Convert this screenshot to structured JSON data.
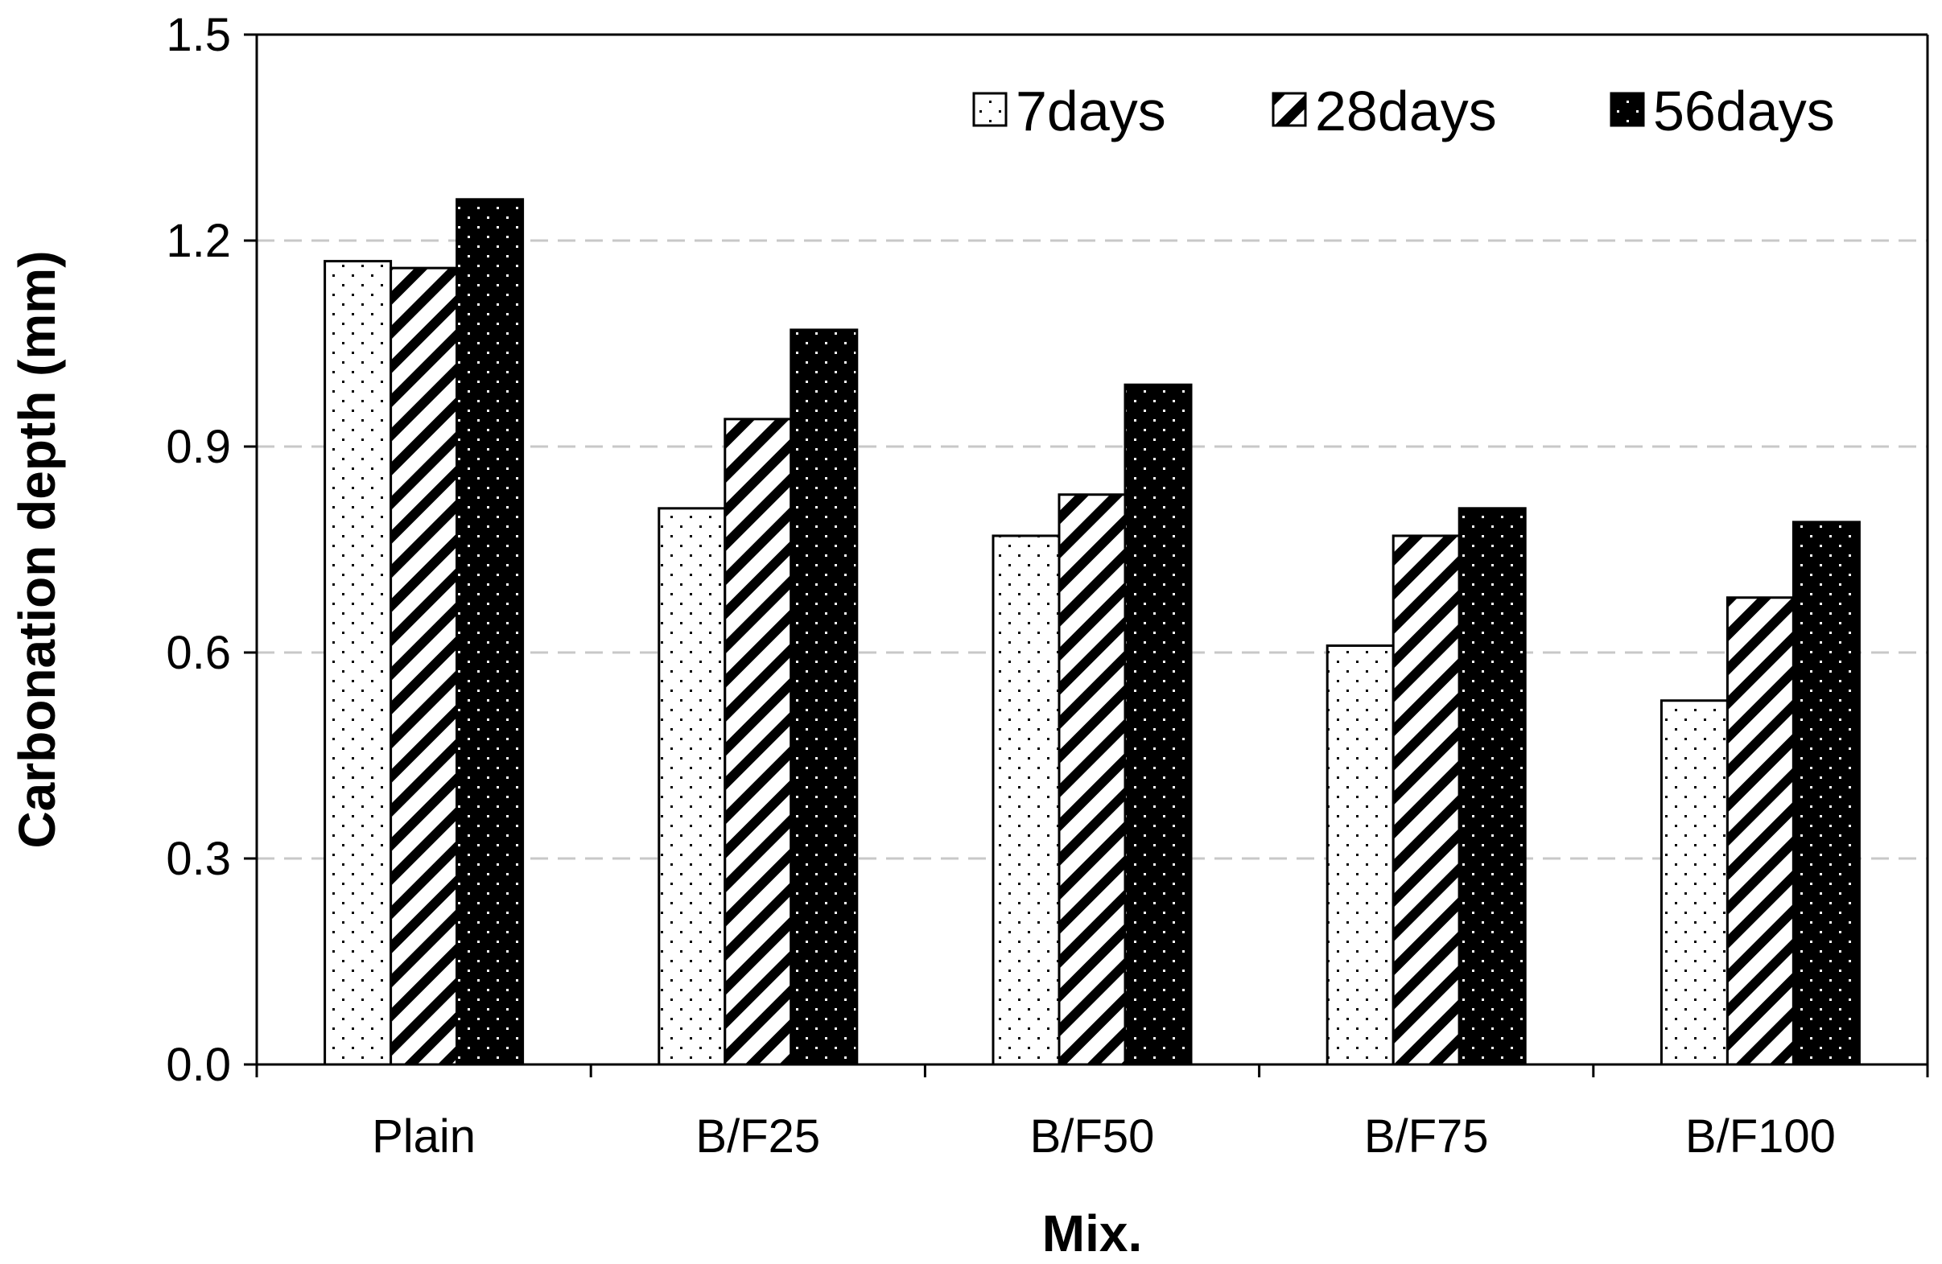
{
  "chart_data": {
    "type": "bar",
    "title": "",
    "xlabel": "Mix.",
    "ylabel": "Carbonation depth (mm)",
    "categories": [
      "Plain",
      "B/F25",
      "B/F50",
      "B/F75",
      "B/F100"
    ],
    "series": [
      {
        "name": "7days",
        "pattern": "dots-light",
        "values": [
          1.17,
          0.81,
          0.77,
          0.61,
          0.53
        ]
      },
      {
        "name": "28days",
        "pattern": "hatch",
        "values": [
          1.16,
          0.94,
          0.83,
          0.77,
          0.68
        ]
      },
      {
        "name": "56days",
        "pattern": "dots-dark",
        "values": [
          1.26,
          1.07,
          0.99,
          0.81,
          0.79
        ]
      }
    ],
    "ylim": [
      0,
      1.5
    ],
    "yticks": [
      0.0,
      0.3,
      0.6,
      0.9,
      1.2,
      1.5
    ],
    "ytick_labels": [
      "0.0",
      "0.3",
      "0.6",
      "0.9",
      "1.2",
      "1.5"
    ],
    "grid": "horizontal dashed",
    "legend_position": "top-right",
    "colors": {
      "ink": "#000000",
      "grid": "#c8c8c8",
      "background": "#ffffff"
    }
  }
}
